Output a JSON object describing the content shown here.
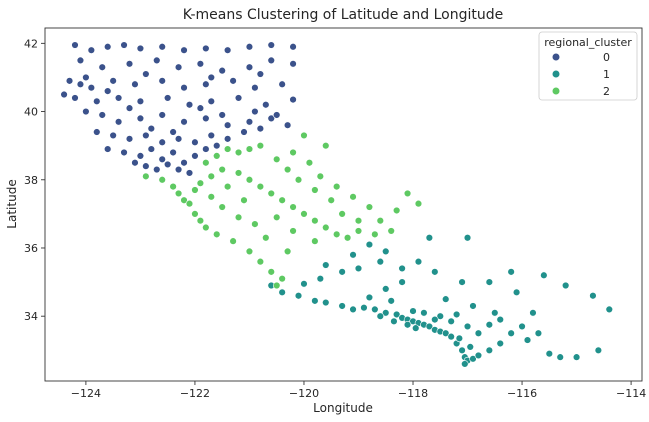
{
  "chart_data": {
    "type": "scatter",
    "title": "K-means Clustering of Latitude and Longitude",
    "xlabel": "Longitude",
    "ylabel": "Latitude",
    "xlim": [
      -124.75,
      -113.8
    ],
    "ylim": [
      32.1,
      42.45
    ],
    "xticks": [
      -124,
      -122,
      -120,
      -118,
      -116,
      -114
    ],
    "yticks": [
      34,
      36,
      38,
      40,
      42
    ],
    "grid": false,
    "legend": {
      "title": "regional_cluster",
      "placement": "top-right"
    },
    "series": [
      {
        "name": "0",
        "color": "#3b528b",
        "points": [
          [
            -124.2,
            41.95
          ],
          [
            -123.9,
            41.8
          ],
          [
            -123.6,
            41.9
          ],
          [
            -123.3,
            41.95
          ],
          [
            -123.0,
            41.85
          ],
          [
            -122.6,
            41.9
          ],
          [
            -122.2,
            41.8
          ],
          [
            -121.8,
            41.85
          ],
          [
            -121.4,
            41.8
          ],
          [
            -121.0,
            41.9
          ],
          [
            -120.6,
            41.95
          ],
          [
            -120.2,
            41.9
          ],
          [
            -124.1,
            41.5
          ],
          [
            -123.7,
            41.3
          ],
          [
            -123.2,
            41.4
          ],
          [
            -122.7,
            41.5
          ],
          [
            -122.3,
            41.3
          ],
          [
            -121.9,
            41.4
          ],
          [
            -121.5,
            41.2
          ],
          [
            -121.0,
            41.3
          ],
          [
            -120.6,
            41.5
          ],
          [
            -120.2,
            41.4
          ],
          [
            -124.3,
            40.9
          ],
          [
            -124.1,
            40.8
          ],
          [
            -123.9,
            40.7
          ],
          [
            -123.5,
            40.9
          ],
          [
            -123.1,
            40.8
          ],
          [
            -122.6,
            40.9
          ],
          [
            -122.2,
            40.7
          ],
          [
            -121.8,
            40.8
          ],
          [
            -121.3,
            40.9
          ],
          [
            -120.9,
            40.7
          ],
          [
            -120.4,
            40.8
          ],
          [
            -124.4,
            40.5
          ],
          [
            -124.2,
            40.4
          ],
          [
            -123.8,
            40.3
          ],
          [
            -123.4,
            40.4
          ],
          [
            -123.0,
            40.3
          ],
          [
            -122.5,
            40.4
          ],
          [
            -122.1,
            40.2
          ],
          [
            -121.7,
            40.3
          ],
          [
            -121.2,
            40.4
          ],
          [
            -120.7,
            40.2
          ],
          [
            -120.2,
            40.35
          ],
          [
            -124.0,
            40.0
          ],
          [
            -123.7,
            39.9
          ],
          [
            -123.4,
            39.7
          ],
          [
            -123.0,
            39.8
          ],
          [
            -122.6,
            39.9
          ],
          [
            -122.2,
            39.7
          ],
          [
            -121.8,
            39.8
          ],
          [
            -121.4,
            39.6
          ],
          [
            -121.0,
            39.7
          ],
          [
            -120.6,
            39.8
          ],
          [
            -120.3,
            39.6
          ],
          [
            -123.8,
            39.4
          ],
          [
            -123.5,
            39.3
          ],
          [
            -123.2,
            39.2
          ],
          [
            -122.9,
            39.3
          ],
          [
            -122.6,
            39.1
          ],
          [
            -122.3,
            39.2
          ],
          [
            -122.0,
            39.1
          ],
          [
            -121.7,
            39.3
          ],
          [
            -121.4,
            39.2
          ],
          [
            -121.1,
            39.4
          ],
          [
            -120.8,
            39.5
          ],
          [
            -123.6,
            38.9
          ],
          [
            -123.3,
            38.8
          ],
          [
            -123.0,
            38.7
          ],
          [
            -122.8,
            38.9
          ],
          [
            -122.6,
            38.6
          ],
          [
            -122.4,
            38.8
          ],
          [
            -122.2,
            38.5
          ],
          [
            -122.0,
            38.7
          ],
          [
            -121.8,
            38.9
          ],
          [
            -121.6,
            39.0
          ],
          [
            -123.1,
            38.5
          ],
          [
            -122.9,
            38.4
          ],
          [
            -122.7,
            38.3
          ],
          [
            -122.5,
            38.45
          ],
          [
            -122.3,
            38.3
          ],
          [
            -122.1,
            38.2
          ],
          [
            -124.0,
            41.0
          ],
          [
            -123.6,
            40.6
          ],
          [
            -123.2,
            40.1
          ],
          [
            -122.8,
            39.5
          ],
          [
            -122.4,
            39.4
          ],
          [
            -121.9,
            40.1
          ],
          [
            -121.5,
            39.9
          ],
          [
            -120.9,
            40.0
          ],
          [
            -120.5,
            39.9
          ],
          [
            -122.9,
            41.1
          ],
          [
            -121.7,
            41.0
          ],
          [
            -120.8,
            41.1
          ]
        ]
      },
      {
        "name": "1",
        "color": "#21918c",
        "points": [
          [
            -120.6,
            34.9
          ],
          [
            -120.4,
            34.7
          ],
          [
            -120.1,
            34.6
          ],
          [
            -119.8,
            34.45
          ],
          [
            -119.6,
            34.4
          ],
          [
            -119.3,
            34.3
          ],
          [
            -119.1,
            34.2
          ],
          [
            -118.9,
            34.25
          ],
          [
            -118.7,
            34.2
          ],
          [
            -118.5,
            34.1
          ],
          [
            -118.3,
            34.05
          ],
          [
            -118.2,
            33.95
          ],
          [
            -118.1,
            33.9
          ],
          [
            -118.0,
            33.85
          ],
          [
            -117.9,
            33.8
          ],
          [
            -117.8,
            33.75
          ],
          [
            -117.7,
            33.7
          ],
          [
            -117.6,
            33.6
          ],
          [
            -117.5,
            33.55
          ],
          [
            -117.4,
            33.5
          ],
          [
            -117.3,
            33.4
          ],
          [
            -117.2,
            33.2
          ],
          [
            -117.1,
            33.0
          ],
          [
            -117.05,
            32.8
          ],
          [
            -117.0,
            32.7
          ],
          [
            -116.9,
            32.75
          ],
          [
            -116.8,
            32.85
          ],
          [
            -116.6,
            33.0
          ],
          [
            -116.4,
            33.2
          ],
          [
            -116.2,
            33.5
          ],
          [
            -116.0,
            33.7
          ],
          [
            -115.7,
            33.5
          ],
          [
            -115.5,
            32.9
          ],
          [
            -115.3,
            32.8
          ],
          [
            -115.0,
            32.8
          ],
          [
            -114.6,
            33.0
          ],
          [
            -114.4,
            34.2
          ],
          [
            -114.7,
            34.6
          ],
          [
            -115.2,
            34.9
          ],
          [
            -115.6,
            35.2
          ],
          [
            -116.2,
            35.3
          ],
          [
            -116.6,
            35.0
          ],
          [
            -117.1,
            35.0
          ],
          [
            -117.6,
            35.3
          ],
          [
            -117.9,
            35.6
          ],
          [
            -118.2,
            35.4
          ],
          [
            -118.6,
            35.6
          ],
          [
            -119.0,
            35.4
          ],
          [
            -119.3,
            35.3
          ],
          [
            -119.6,
            35.5
          ],
          [
            -119.1,
            35.8
          ],
          [
            -118.8,
            36.1
          ],
          [
            -118.5,
            35.9
          ],
          [
            -117.7,
            36.3
          ],
          [
            -117.0,
            36.3
          ],
          [
            -118.2,
            35.0
          ],
          [
            -118.5,
            34.8
          ],
          [
            -117.4,
            34.5
          ],
          [
            -116.9,
            34.3
          ],
          [
            -116.5,
            34.1
          ],
          [
            -117.2,
            34.05
          ],
          [
            -117.5,
            34.0
          ],
          [
            -117.8,
            34.1
          ],
          [
            -118.0,
            34.15
          ],
          [
            -118.35,
            33.85
          ],
          [
            -118.1,
            33.75
          ],
          [
            -117.95,
            33.65
          ],
          [
            -117.6,
            33.9
          ],
          [
            -117.3,
            33.85
          ],
          [
            -117.0,
            33.7
          ],
          [
            -116.8,
            33.5
          ],
          [
            -116.6,
            33.75
          ],
          [
            -120.0,
            34.95
          ],
          [
            -119.7,
            35.1
          ],
          [
            -118.8,
            34.55
          ],
          [
            -118.4,
            34.45
          ],
          [
            -116.1,
            34.7
          ],
          [
            -115.8,
            34.1
          ],
          [
            -117.05,
            32.6
          ],
          [
            -116.95,
            33.1
          ],
          [
            -117.15,
            33.35
          ],
          [
            -116.4,
            33.9
          ],
          [
            -115.9,
            33.3
          ],
          [
            -118.6,
            34.0
          ]
        ]
      },
      {
        "name": "2",
        "color": "#5ec962",
        "points": [
          [
            -122.9,
            38.1
          ],
          [
            -122.6,
            38.0
          ],
          [
            -122.4,
            37.8
          ],
          [
            -122.3,
            37.6
          ],
          [
            -122.2,
            37.4
          ],
          [
            -122.1,
            37.3
          ],
          [
            -122.0,
            37.0
          ],
          [
            -121.9,
            36.8
          ],
          [
            -121.8,
            36.6
          ],
          [
            -121.6,
            36.4
          ],
          [
            -121.3,
            36.2
          ],
          [
            -121.0,
            35.9
          ],
          [
            -120.8,
            35.6
          ],
          [
            -120.6,
            35.3
          ],
          [
            -120.4,
            35.1
          ],
          [
            -120.5,
            34.9
          ],
          [
            -121.8,
            38.5
          ],
          [
            -121.6,
            38.7
          ],
          [
            -121.4,
            38.9
          ],
          [
            -121.2,
            38.8
          ],
          [
            -121.0,
            38.9
          ],
          [
            -120.8,
            39.0
          ],
          [
            -121.5,
            38.3
          ],
          [
            -121.2,
            38.2
          ],
          [
            -121.0,
            38.0
          ],
          [
            -120.8,
            37.8
          ],
          [
            -120.6,
            37.6
          ],
          [
            -120.4,
            37.4
          ],
          [
            -120.2,
            37.2
          ],
          [
            -120.0,
            37.0
          ],
          [
            -119.8,
            36.8
          ],
          [
            -119.6,
            36.6
          ],
          [
            -119.4,
            36.4
          ],
          [
            -119.2,
            36.3
          ],
          [
            -119.0,
            36.5
          ],
          [
            -119.3,
            37.0
          ],
          [
            -119.5,
            37.4
          ],
          [
            -119.8,
            37.7
          ],
          [
            -120.1,
            38.0
          ],
          [
            -120.3,
            38.3
          ],
          [
            -120.5,
            38.6
          ],
          [
            -120.2,
            38.8
          ],
          [
            -119.9,
            38.5
          ],
          [
            -119.7,
            38.1
          ],
          [
            -119.4,
            37.8
          ],
          [
            -119.1,
            37.5
          ],
          [
            -118.8,
            37.2
          ],
          [
            -118.6,
            36.8
          ],
          [
            -118.4,
            36.5
          ],
          [
            -118.7,
            36.4
          ],
          [
            -119.0,
            36.8
          ],
          [
            -120.0,
            39.3
          ],
          [
            -121.7,
            38.1
          ],
          [
            -121.9,
            37.9
          ],
          [
            -122.0,
            37.7
          ],
          [
            -121.7,
            37.5
          ],
          [
            -121.5,
            37.2
          ],
          [
            -121.2,
            36.9
          ],
          [
            -120.9,
            36.7
          ],
          [
            -120.7,
            36.3
          ],
          [
            -121.4,
            37.8
          ],
          [
            -121.1,
            37.4
          ],
          [
            -120.5,
            36.9
          ],
          [
            -120.2,
            36.5
          ],
          [
            -119.8,
            36.2
          ],
          [
            -120.3,
            35.9
          ],
          [
            -118.1,
            37.6
          ],
          [
            -117.9,
            37.3
          ],
          [
            -118.3,
            37.1
          ],
          [
            -119.6,
            39.0
          ]
        ]
      }
    ]
  }
}
